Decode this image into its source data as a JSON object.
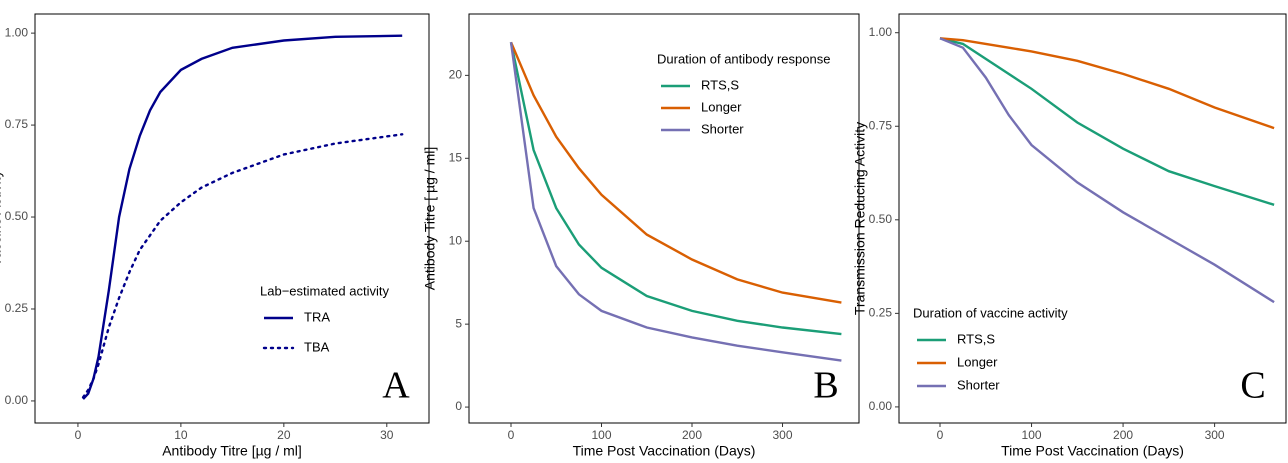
{
  "chart_data": [
    {
      "type": "line",
      "annotation": "A",
      "x_label": "Antibody Titre [µg / ml]",
      "y_label": "Vaccine Activity",
      "x": [
        0.5,
        1,
        1.5,
        2,
        3,
        4,
        5,
        6,
        7,
        8,
        10,
        12,
        15,
        20,
        25,
        31.5
      ],
      "series": [
        {
          "name": "TRA",
          "color": "#00008b",
          "dash": "solid",
          "values": [
            0.005,
            0.02,
            0.06,
            0.12,
            0.3,
            0.5,
            0.63,
            0.72,
            0.79,
            0.84,
            0.9,
            0.93,
            0.96,
            0.98,
            0.99,
            0.993
          ]
        },
        {
          "name": "TBA",
          "color": "#00008b",
          "dash": "dotted",
          "values": [
            0.01,
            0.03,
            0.06,
            0.1,
            0.2,
            0.28,
            0.35,
            0.41,
            0.45,
            0.49,
            0.54,
            0.58,
            0.62,
            0.67,
            0.7,
            0.725
          ]
        }
      ],
      "legend_title": "Lab−estimated activity",
      "legend": "right",
      "xlim": [
        -4.17,
        34.1
      ],
      "xticks": [
        0,
        10,
        20,
        30
      ],
      "ylim": [
        -0.06,
        1.052
      ],
      "yticks": [
        {
          "value": 0,
          "label": "0.00"
        },
        {
          "value": 0.25,
          "label": "0.25"
        },
        {
          "value": 0.5,
          "label": "0.50"
        },
        {
          "value": 0.75,
          "label": "0.75"
        },
        {
          "value": 1,
          "label": "1.00"
        }
      ]
    },
    {
      "type": "line",
      "annotation": "B",
      "x_label": "Time Post Vaccination (Days)",
      "y_label": "Antibody Titre [ µg / ml]",
      "x": [
        0,
        25,
        50,
        75,
        100,
        150,
        200,
        250,
        300,
        365
      ],
      "series": [
        {
          "name": "RTS,S",
          "color": "#1b9e77",
          "dash": "solid",
          "values": [
            22,
            15.5,
            12,
            9.8,
            8.4,
            6.7,
            5.8,
            5.2,
            4.8,
            4.4
          ]
        },
        {
          "name": "Longer",
          "color": "#d95f02",
          "dash": "solid",
          "values": [
            22,
            18.8,
            16.3,
            14.4,
            12.8,
            10.4,
            8.9,
            7.7,
            6.9,
            6.3
          ]
        },
        {
          "name": "Shorter",
          "color": "#7570b3",
          "dash": "solid",
          "values": [
            22,
            12,
            8.5,
            6.8,
            5.8,
            4.8,
            4.2,
            3.7,
            3.3,
            2.8
          ]
        }
      ],
      "legend_title": "Duration of antibody response",
      "legend": "top-right",
      "xlim": [
        -46.4,
        384.5
      ],
      "xticks": [
        0,
        100,
        200,
        300
      ],
      "ylim": [
        -0.96,
        23.7
      ],
      "yticks": [
        0,
        5,
        10,
        15,
        20
      ]
    },
    {
      "type": "line",
      "annotation": "C",
      "x_label": "Time Post Vaccination (Days)",
      "y_label": "Transmission Reducing Activity",
      "x": [
        0,
        25,
        50,
        75,
        100,
        150,
        200,
        250,
        300,
        365
      ],
      "series": [
        {
          "name": "RTS,S",
          "color": "#1b9e77",
          "dash": "solid",
          "values": [
            0.985,
            0.97,
            0.93,
            0.89,
            0.85,
            0.76,
            0.69,
            0.63,
            0.59,
            0.54
          ]
        },
        {
          "name": "Longer",
          "color": "#d95f02",
          "dash": "solid",
          "values": [
            0.985,
            0.98,
            0.97,
            0.96,
            0.95,
            0.925,
            0.89,
            0.85,
            0.8,
            0.745
          ]
        },
        {
          "name": "Shorter",
          "color": "#7570b3",
          "dash": "solid",
          "values": [
            0.985,
            0.96,
            0.88,
            0.78,
            0.7,
            0.6,
            0.52,
            0.45,
            0.38,
            0.28
          ]
        }
      ],
      "legend_title": "Duration of vaccine activity",
      "legend": "bottom-left",
      "xlim": [
        -44.8,
        378
      ],
      "xticks": [
        0,
        100,
        200,
        300
      ],
      "ylim": [
        -0.043,
        1.05
      ],
      "yticks": [
        {
          "value": 0,
          "label": "0.00"
        },
        {
          "value": 0.25,
          "label": "0.25"
        },
        {
          "value": 0.5,
          "label": "0.50"
        },
        {
          "value": 0.75,
          "label": "0.75"
        },
        {
          "value": 1,
          "label": "1.00"
        }
      ]
    }
  ]
}
